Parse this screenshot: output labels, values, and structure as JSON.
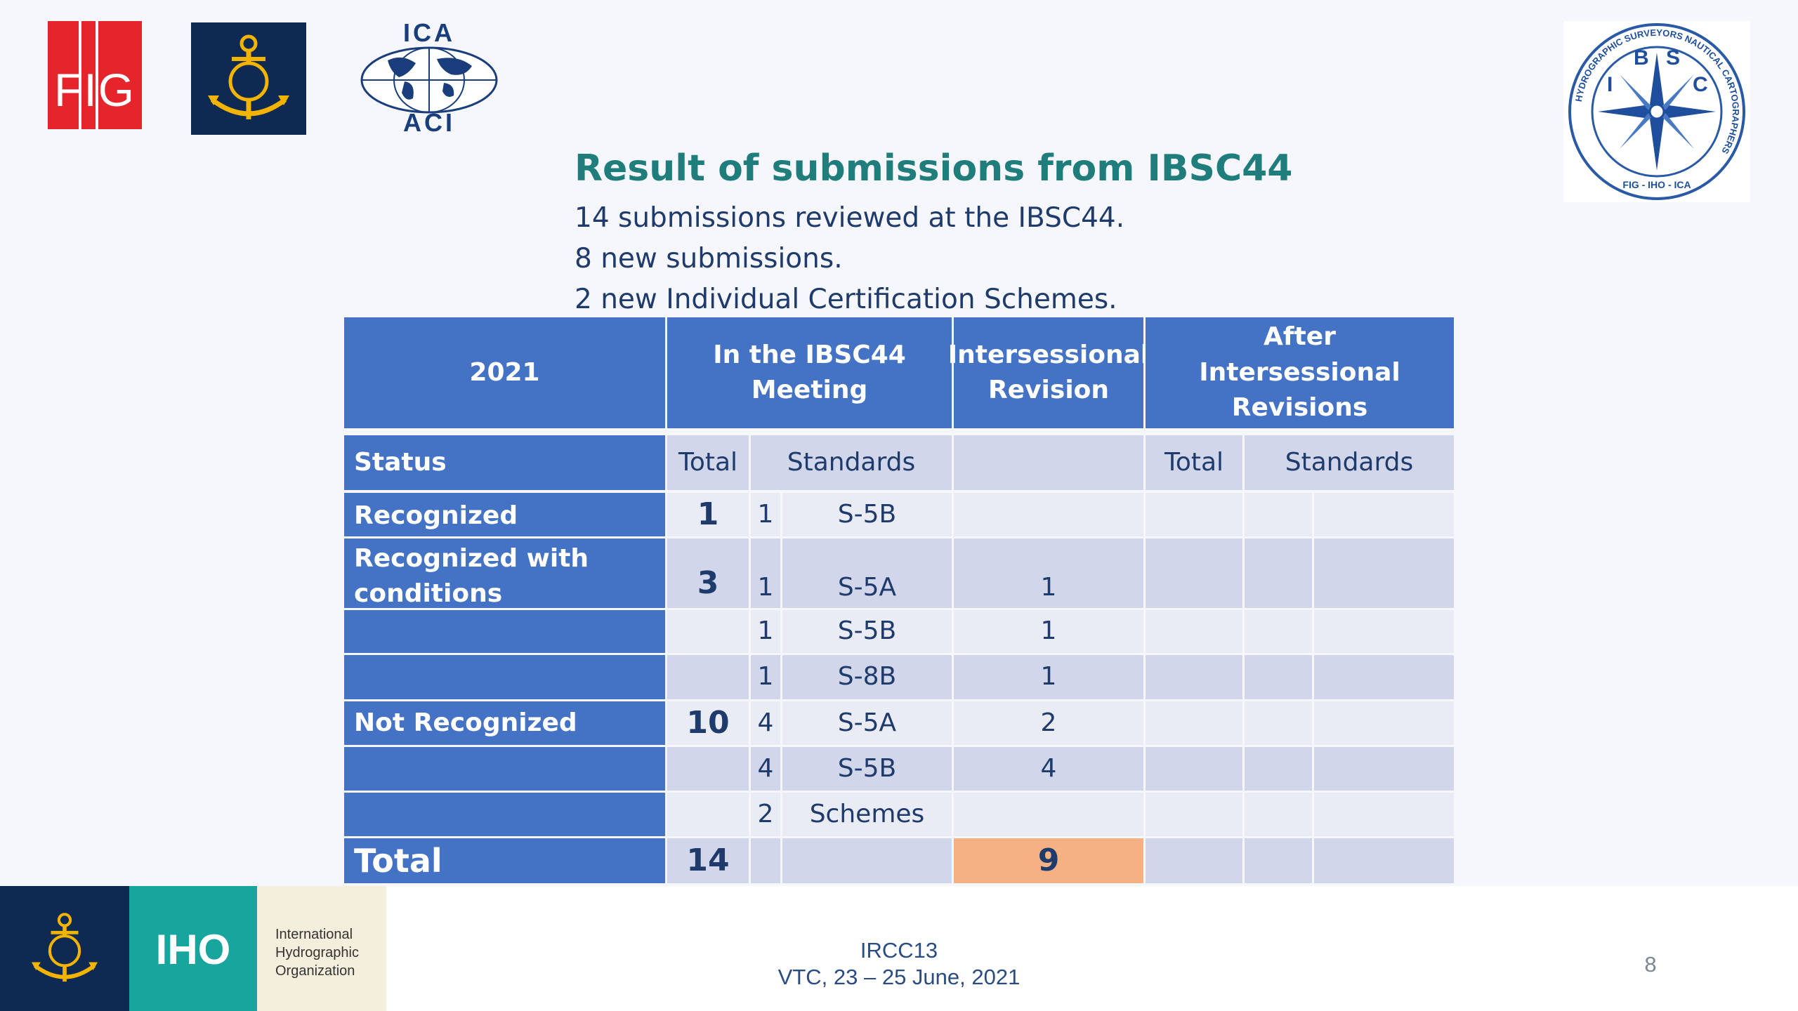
{
  "logos": {
    "fig": "FIG",
    "ica_top": "ICA",
    "ica_bottom": "ACI",
    "ibsc_letters": [
      "B",
      "S",
      "I",
      "C"
    ],
    "ibsc_ring": "HYDROGRAPHIC SURVEYORS NAUTICAL CARTOGRAPHERS",
    "ibsc_bottom": "FIG - IHO - ICA"
  },
  "slide": {
    "title": "Result of submissions from IBSC44",
    "lines": [
      "14 submissions reviewed at the IBSC44.",
      "8 new submissions.",
      "2 new Individual Certification Schemes."
    ]
  },
  "table": {
    "header": {
      "year": "2021",
      "meeting": "In the IBSC44 Meeting",
      "intersessional": "Intersessional Revision",
      "after": "After Intersessional Revisions"
    },
    "subheader": {
      "status": "Status",
      "total": "Total",
      "standards": "Standards",
      "after_total": "Total",
      "after_standards": "Standards"
    },
    "rows": [
      {
        "status": "Recognized",
        "total": "1",
        "count": "1",
        "standard": "S-5B",
        "revision": ""
      },
      {
        "status": "Recognized with conditions",
        "total": "3",
        "count": "1",
        "standard": "S-5A",
        "revision": "1"
      },
      {
        "status": "",
        "total": "",
        "count": "1",
        "standard": "S-5B",
        "revision": "1"
      },
      {
        "status": "",
        "total": "",
        "count": "1",
        "standard": "S-8B",
        "revision": "1"
      },
      {
        "status": "Not Recognized",
        "total": "10",
        "count": "4",
        "standard": "S-5A",
        "revision": "2"
      },
      {
        "status": "",
        "total": "",
        "count": "4",
        "standard": "S-5B",
        "revision": "4"
      },
      {
        "status": "",
        "total": "",
        "count": "2",
        "standard": "Schemes",
        "revision": ""
      }
    ],
    "total_row": {
      "label": "Total",
      "total": "14",
      "revision": "9"
    }
  },
  "footer": {
    "iho": "IHO",
    "org_name": "International\nHydrographic\nOrganization",
    "event": "IRCC13",
    "dates": "VTC, 23 – 25 June, 2021",
    "page": "8"
  },
  "colors": {
    "table_header": "#4472c4",
    "row_light": "#e9ebf5",
    "row_dark": "#d1d6eb",
    "highlight": "#f4b183",
    "title": "#1f7d7c"
  }
}
